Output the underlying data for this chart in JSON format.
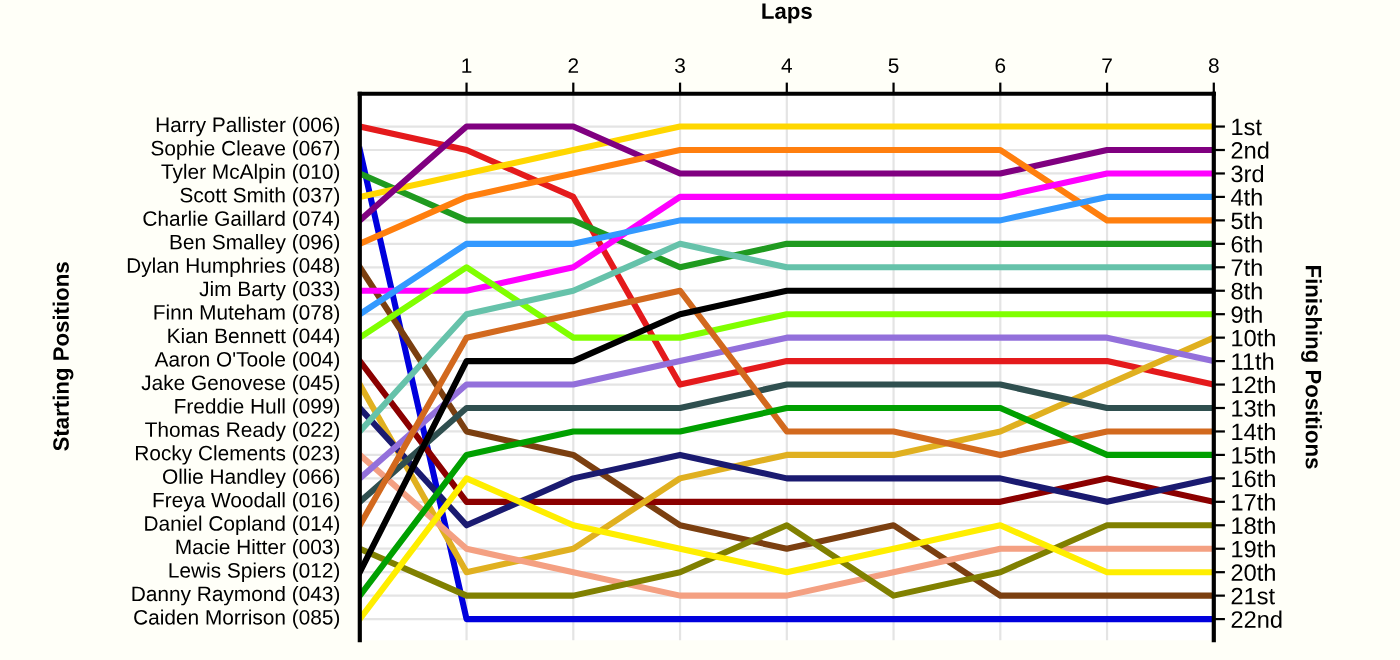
{
  "chart_data": {
    "type": "line",
    "xlabel": "Laps",
    "annotations": [
      "Starting Positions"
    ],
    "y2label": "Finishing Positions",
    "x": [
      0,
      1,
      2,
      3,
      4,
      5,
      6,
      7,
      8
    ],
    "xlim": [
      0,
      8
    ],
    "xticks": [
      1,
      2,
      3,
      4,
      5,
      6,
      7,
      8
    ],
    "y2lim": [
      22.9,
      -0.4
    ],
    "grid": true,
    "marker": "none",
    "line_style": "solid",
    "y2ticks": [
      {
        "value": 1,
        "label": "1st"
      },
      {
        "value": 2,
        "label": "2nd"
      },
      {
        "value": 3,
        "label": "3rd"
      },
      {
        "value": 4,
        "label": "4th"
      },
      {
        "value": 5,
        "label": "5th"
      },
      {
        "value": 6,
        "label": "6th"
      },
      {
        "value": 7,
        "label": "7th"
      },
      {
        "value": 8,
        "label": "8th"
      },
      {
        "value": 9,
        "label": "9th"
      },
      {
        "value": 10,
        "label": "10th"
      },
      {
        "value": 11,
        "label": "11th"
      },
      {
        "value": 12,
        "label": "12th"
      },
      {
        "value": 13,
        "label": "13th"
      },
      {
        "value": 14,
        "label": "14th"
      },
      {
        "value": 15,
        "label": "15th"
      },
      {
        "value": 16,
        "label": "16th"
      },
      {
        "value": 17,
        "label": "17th"
      },
      {
        "value": 18,
        "label": "18th"
      },
      {
        "value": 19,
        "label": "19th"
      },
      {
        "value": 20,
        "label": "20th"
      },
      {
        "value": 21,
        "label": "21st"
      },
      {
        "value": 22,
        "label": "22nd"
      }
    ],
    "series": [
      {
        "name": "Harry Pallister (006)",
        "axis": "y2",
        "color": "#e41a1c",
        "values": [
          1,
          2,
          4,
          12,
          11,
          11,
          11,
          11,
          12
        ]
      },
      {
        "name": "Sophie Cleave (067)",
        "axis": "y2",
        "color": "#0000dd",
        "values": [
          2,
          22,
          22,
          22,
          22,
          22,
          22,
          22,
          22
        ]
      },
      {
        "name": "Tyler McAlpin (010)",
        "axis": "y2",
        "color": "#1f9a1f",
        "values": [
          3,
          5,
          5,
          7,
          6,
          6,
          6,
          6,
          6
        ]
      },
      {
        "name": "Scott Smith (037)",
        "axis": "y2",
        "color": "#ffd700",
        "values": [
          4,
          3,
          2,
          1,
          1,
          1,
          1,
          1,
          1
        ]
      },
      {
        "name": "Charlie Gaillard (074)",
        "axis": "y2",
        "color": "#800080",
        "values": [
          5,
          1,
          1,
          3,
          3,
          3,
          3,
          2,
          2
        ]
      },
      {
        "name": "Ben Smalley (096)",
        "axis": "y2",
        "color": "#ff7f0e",
        "values": [
          6,
          4,
          3,
          2,
          2,
          2,
          2,
          5,
          5
        ]
      },
      {
        "name": "Dylan Humphries (048)",
        "axis": "y2",
        "color": "#7b3f10",
        "values": [
          7,
          14,
          15,
          18,
          19,
          18,
          21,
          21,
          21
        ]
      },
      {
        "name": "Jim Barty (033)",
        "axis": "y2",
        "color": "#ff00ff",
        "values": [
          8,
          8,
          7,
          4,
          4,
          4,
          4,
          3,
          3
        ]
      },
      {
        "name": "Finn Muteham (078)",
        "axis": "y2",
        "color": "#3399ff",
        "values": [
          9,
          6,
          6,
          5,
          5,
          5,
          5,
          4,
          4
        ]
      },
      {
        "name": "Kian Bennett (044)",
        "axis": "y2",
        "color": "#80ff00",
        "values": [
          10,
          7,
          10,
          10,
          9,
          9,
          9,
          9,
          9
        ]
      },
      {
        "name": "Aaron O'Toole (004)",
        "axis": "y2",
        "color": "#8b0000",
        "values": [
          11,
          17,
          17,
          17,
          17,
          17,
          17,
          16,
          17
        ]
      },
      {
        "name": "Jake Genovese (045)",
        "axis": "y2",
        "color": "#e0b020",
        "values": [
          12,
          20,
          19,
          16,
          15,
          15,
          14,
          12,
          10
        ]
      },
      {
        "name": "Freddie Hull (099)",
        "axis": "y2",
        "color": "#1a1a70",
        "values": [
          13,
          18,
          16,
          15,
          16,
          16,
          16,
          17,
          16
        ]
      },
      {
        "name": "Thomas Ready (022)",
        "axis": "y2",
        "color": "#66c2aa",
        "values": [
          14,
          9,
          8,
          6,
          7,
          7,
          7,
          7,
          7
        ]
      },
      {
        "name": "Rocky Clements (023)",
        "axis": "y2",
        "color": "#f4a082",
        "values": [
          15,
          19,
          20,
          21,
          21,
          20,
          19,
          19,
          19
        ]
      },
      {
        "name": "Ollie Handley (066)",
        "axis": "y2",
        "color": "#9370db",
        "values": [
          16,
          12,
          12,
          11,
          10,
          10,
          10,
          10,
          11
        ]
      },
      {
        "name": "Freya Woodall (016)",
        "axis": "y2",
        "color": "#2f4f4f",
        "values": [
          17,
          13,
          13,
          13,
          12,
          12,
          12,
          13,
          13
        ]
      },
      {
        "name": "Daniel Copland (014)",
        "axis": "y2",
        "color": "#d2691e",
        "values": [
          18,
          10,
          9,
          8,
          14,
          14,
          15,
          14,
          14
        ]
      },
      {
        "name": "Macie Hitter (003)",
        "axis": "y2",
        "color": "#808000",
        "values": [
          19,
          21,
          21,
          20,
          18,
          21,
          20,
          18,
          18
        ]
      },
      {
        "name": "Lewis Spiers (012)",
        "axis": "y2",
        "color": "#000000",
        "values": [
          20,
          11,
          11,
          9,
          8,
          8,
          8,
          8,
          8
        ]
      },
      {
        "name": "Danny Raymond (043)",
        "axis": "y2",
        "color": "#00a000",
        "values": [
          21,
          15,
          14,
          14,
          13,
          13,
          13,
          15,
          15
        ]
      },
      {
        "name": "Caiden Morrison (085)",
        "axis": "y2",
        "color": "#ffee00",
        "values": [
          22,
          16,
          18,
          19,
          20,
          19,
          18,
          20,
          20
        ]
      }
    ]
  }
}
